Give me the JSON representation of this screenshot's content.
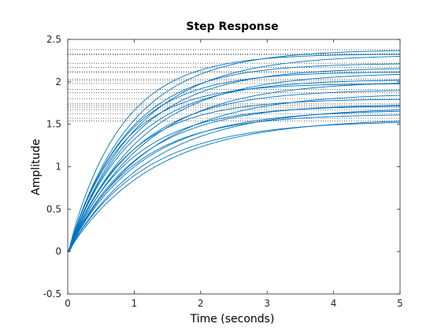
{
  "chart_data": {
    "type": "line",
    "title": "Step Response",
    "xlabel": "Time (seconds)",
    "ylabel": "Amplitude",
    "xlim": [
      0,
      5
    ],
    "ylim": [
      -0.5,
      2.5
    ],
    "x_ticks": [
      "0",
      "1",
      "2",
      "3",
      "4",
      "5"
    ],
    "y_ticks": [
      "-0.5",
      "0",
      "0.5",
      "1",
      "1.5",
      "2",
      "2.5"
    ],
    "grid": false,
    "legend": "none",
    "line_color": "#0072BD",
    "steady_state_color": "#000000",
    "series": [
      {
        "final": 2.38,
        "tau": 0.95,
        "undershoot": 0.06
      },
      {
        "final": 2.33,
        "tau": 0.8,
        "undershoot": 0.08
      },
      {
        "final": 2.32,
        "tau": 1.05,
        "undershoot": 0.04
      },
      {
        "final": 2.22,
        "tau": 0.9,
        "undershoot": 0.09
      },
      {
        "final": 2.17,
        "tau": 1.0,
        "undershoot": 0.05
      },
      {
        "final": 2.12,
        "tau": 0.85,
        "undershoot": 0.07
      },
      {
        "final": 2.11,
        "tau": 1.1,
        "undershoot": 0.03
      },
      {
        "final": 2.03,
        "tau": 0.95,
        "undershoot": 0.08
      },
      {
        "final": 2.01,
        "tau": 1.15,
        "undershoot": 0.05
      },
      {
        "final": 1.98,
        "tau": 0.8,
        "undershoot": 0.06
      },
      {
        "final": 1.91,
        "tau": 1.0,
        "undershoot": 0.04
      },
      {
        "final": 1.87,
        "tau": 1.2,
        "undershoot": 0.09
      },
      {
        "final": 1.8,
        "tau": 0.9,
        "undershoot": 0.05
      },
      {
        "final": 1.74,
        "tau": 1.05,
        "undershoot": 0.07
      },
      {
        "final": 1.72,
        "tau": 0.95,
        "undershoot": 0.03
      },
      {
        "final": 1.7,
        "tau": 1.25,
        "undershoot": 0.08
      },
      {
        "final": 1.67,
        "tau": 1.1,
        "undershoot": 0.06
      },
      {
        "final": 1.62,
        "tau": 1.0,
        "undershoot": 0.05
      },
      {
        "final": 1.57,
        "tau": 1.3,
        "undershoot": 0.04
      },
      {
        "final": 1.54,
        "tau": 1.15,
        "undershoot": 0.07
      }
    ]
  }
}
